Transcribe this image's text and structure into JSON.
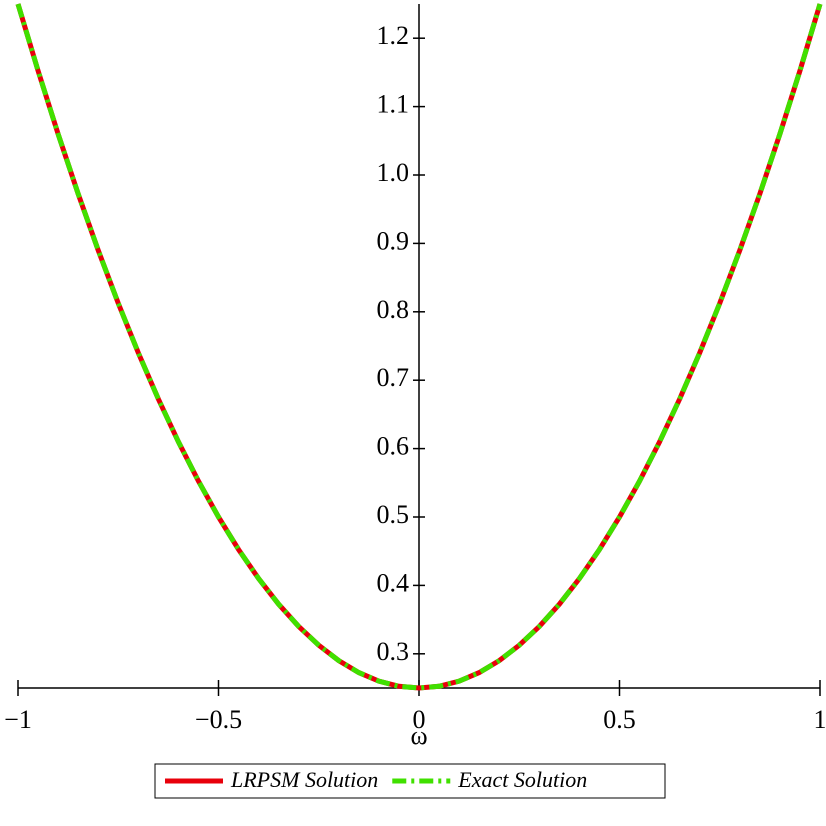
{
  "chart_data": {
    "type": "line",
    "xlabel": "ω",
    "x": [
      -1,
      -0.95,
      -0.9,
      -0.85,
      -0.8,
      -0.75,
      -0.7,
      -0.65,
      -0.6,
      -0.55,
      -0.5,
      -0.45,
      -0.4,
      -0.35,
      -0.3,
      -0.25,
      -0.2,
      -0.15,
      -0.1,
      -0.05,
      0,
      0.05,
      0.1,
      0.15,
      0.2,
      0.25,
      0.3,
      0.35,
      0.4,
      0.45,
      0.5,
      0.55,
      0.6,
      0.65,
      0.7,
      0.75,
      0.8,
      0.85,
      0.9,
      0.95,
      1
    ],
    "series": [
      {
        "name": "LRPSM Solution",
        "color": "#e8000b",
        "dash": "solid",
        "values": [
          1.25,
          1.1525,
          1.06,
          0.9725,
          0.89,
          0.8125,
          0.74,
          0.6725,
          0.61,
          0.5525,
          0.5,
          0.4525,
          0.41,
          0.3725,
          0.34,
          0.3125,
          0.29,
          0.2725,
          0.26,
          0.2525,
          0.25,
          0.2525,
          0.26,
          0.2725,
          0.29,
          0.3125,
          0.34,
          0.3725,
          0.41,
          0.4525,
          0.5,
          0.5525,
          0.61,
          0.6725,
          0.74,
          0.8125,
          0.89,
          0.9725,
          1.06,
          1.1525,
          1.25
        ]
      },
      {
        "name": "Exact Solution",
        "color": "#40e000",
        "dash": "dashdot",
        "values": [
          1.25,
          1.1525,
          1.06,
          0.9725,
          0.89,
          0.8125,
          0.74,
          0.6725,
          0.61,
          0.5525,
          0.5,
          0.4525,
          0.41,
          0.3725,
          0.34,
          0.3125,
          0.29,
          0.2725,
          0.26,
          0.2525,
          0.25,
          0.2525,
          0.26,
          0.2725,
          0.29,
          0.3125,
          0.34,
          0.3725,
          0.41,
          0.4525,
          0.5,
          0.5525,
          0.61,
          0.6725,
          0.74,
          0.8125,
          0.89,
          0.9725,
          1.06,
          1.1525,
          1.25
        ]
      }
    ],
    "xlim": [
      -1,
      1
    ],
    "ylim": [
      0.25,
      1.25
    ],
    "xticks": [
      {
        "value": -1,
        "label": "−1"
      },
      {
        "value": -0.5,
        "label": "−0.5"
      },
      0,
      0.5,
      1
    ],
    "yticks": [
      0.3,
      0.4,
      0.5,
      0.6,
      0.7,
      0.8,
      0.9,
      {
        "value": 1,
        "label": "1.0"
      },
      1.1,
      1.2
    ],
    "legend": "bottom"
  }
}
